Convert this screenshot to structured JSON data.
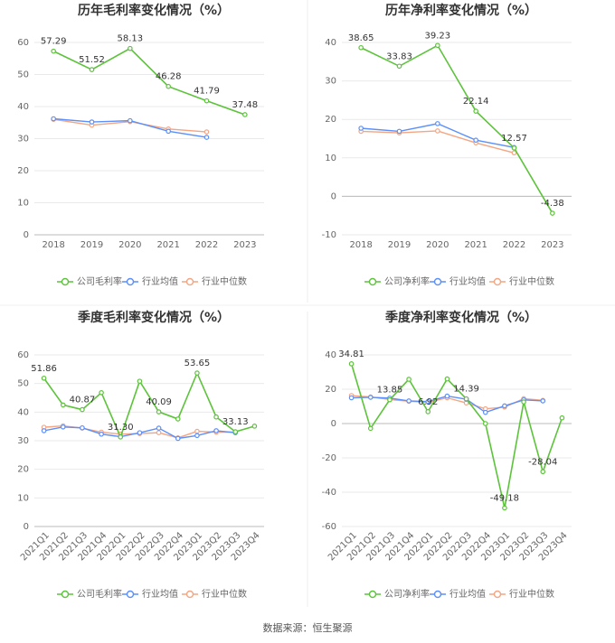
{
  "chart_data": [
    {
      "type": "line",
      "title": "历年毛利率变化情况（%）",
      "categories": [
        "2018",
        "2019",
        "2020",
        "2021",
        "2022",
        "2023"
      ],
      "ylim": [
        0,
        60
      ],
      "yticks": [
        0,
        10,
        20,
        30,
        40,
        50,
        60
      ],
      "grid": true,
      "legend": "bottom",
      "series": [
        {
          "name": "公司毛利率",
          "color": "#5cc33a",
          "values": [
            57.29,
            51.52,
            58.13,
            46.28,
            41.79,
            37.48
          ],
          "value_labels": [
            "57.29",
            "51.52",
            "58.13",
            "46.28",
            "41.79",
            "37.48"
          ]
        },
        {
          "name": "行业均值",
          "color": "#5b8ff9",
          "values": [
            36.2,
            35.2,
            35.6,
            32.3,
            30.4,
            null
          ]
        },
        {
          "name": "行业中位数",
          "color": "#f4a582",
          "values": [
            36.0,
            34.2,
            35.3,
            33.0,
            32.1,
            null
          ]
        }
      ]
    },
    {
      "type": "line",
      "title": "历年净利率变化情况（%）",
      "categories": [
        "2018",
        "2019",
        "2020",
        "2021",
        "2022",
        "2023"
      ],
      "ylim": [
        -10,
        40
      ],
      "yticks": [
        -10,
        0,
        10,
        20,
        30,
        40
      ],
      "grid": true,
      "legend": "bottom",
      "series": [
        {
          "name": "公司净利率",
          "color": "#5cc33a",
          "values": [
            38.65,
            33.83,
            39.23,
            22.14,
            12.57,
            -4.38
          ],
          "value_labels": [
            "38.65",
            "33.83",
            "39.23",
            "22.14",
            "12.57",
            "-4.38"
          ]
        },
        {
          "name": "行业均值",
          "color": "#5b8ff9",
          "values": [
            17.7,
            16.9,
            18.9,
            14.6,
            12.7,
            null
          ]
        },
        {
          "name": "行业中位数",
          "color": "#f4a582",
          "values": [
            16.9,
            16.5,
            17.0,
            13.9,
            11.3,
            null
          ]
        }
      ]
    },
    {
      "type": "line",
      "title": "季度毛利率变化情况（%）",
      "categories": [
        "2021Q1",
        "2021Q2",
        "2021Q3",
        "2021Q4",
        "2022Q1",
        "2022Q2",
        "2022Q3",
        "2022Q4",
        "2023Q1",
        "2023Q2",
        "2023Q3",
        "2023Q4"
      ],
      "ylim": [
        0,
        60
      ],
      "yticks": [
        0,
        10,
        20,
        30,
        40,
        50,
        60
      ],
      "grid": true,
      "legend": "bottom",
      "series": [
        {
          "name": "公司毛利率",
          "color": "#5cc33a",
          "values": [
            51.86,
            42.5,
            40.87,
            46.8,
            31.3,
            50.8,
            40.09,
            37.6,
            53.65,
            38.3,
            33.13,
            35.1
          ],
          "value_labels": [
            "51.86",
            null,
            "40.87",
            null,
            "31.30",
            null,
            "40.09",
            null,
            "53.65",
            null,
            "33.13",
            null
          ]
        },
        {
          "name": "行业均值",
          "color": "#5b8ff9",
          "values": [
            33.5,
            34.8,
            34.5,
            32.3,
            31.4,
            32.8,
            34.4,
            30.8,
            31.8,
            33.5,
            32.8,
            null
          ]
        },
        {
          "name": "行业中位数",
          "color": "#f4a582",
          "values": [
            34.7,
            35.2,
            34.4,
            33.0,
            32.3,
            32.5,
            32.8,
            31.0,
            33.3,
            33.0,
            33.0,
            null
          ]
        }
      ]
    },
    {
      "type": "line",
      "title": "季度净利率变化情况（%）",
      "categories": [
        "2021Q1",
        "2021Q2",
        "2021Q3",
        "2021Q4",
        "2022Q1",
        "2022Q2",
        "2022Q3",
        "2022Q4",
        "2023Q1",
        "2023Q2",
        "2023Q3",
        "2023Q4"
      ],
      "ylim": [
        -60,
        40
      ],
      "yticks": [
        -60,
        -40,
        -20,
        0,
        20,
        40
      ],
      "grid": true,
      "legend": "bottom",
      "series": [
        {
          "name": "公司净利率",
          "color": "#5cc33a",
          "values": [
            34.81,
            -2.8,
            13.85,
            25.8,
            6.92,
            26.0,
            14.39,
            0.0,
            -49.18,
            12.6,
            -28.04,
            3.3
          ],
          "value_labels": [
            "34.81",
            null,
            "13.85",
            null,
            "6.92",
            null,
            "14.39",
            null,
            "-49.18",
            null,
            "-28.04",
            null
          ]
        },
        {
          "name": "行业均值",
          "color": "#5b8ff9",
          "values": [
            15.0,
            15.3,
            14.8,
            13.2,
            12.8,
            16.0,
            14.2,
            6.5,
            10.3,
            13.8,
            13.2,
            null
          ]
        },
        {
          "name": "行业中位数",
          "color": "#f4a582",
          "values": [
            16.3,
            15.5,
            14.0,
            13.0,
            12.4,
            15.0,
            12.0,
            8.6,
            9.6,
            14.5,
            13.5,
            null
          ]
        }
      ]
    }
  ],
  "source": "数据来源：恒生聚源"
}
